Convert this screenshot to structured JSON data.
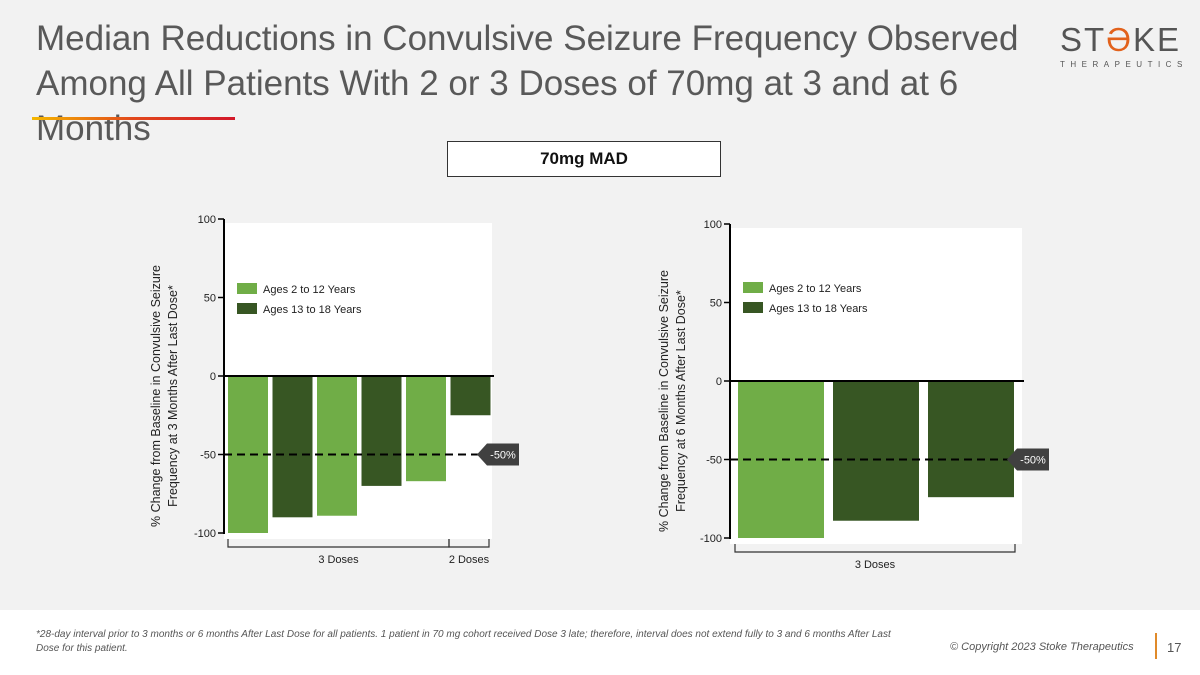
{
  "title": "Median Reductions in Convulsive Seizure Frequency Observed Among All Patients With 2 or 3 Doses of 70mg at 3 and at 6 Months",
  "logo": {
    "word": "STOKE",
    "sub": "THERAPEUTICS"
  },
  "section_label": "70mg MAD",
  "colors": {
    "ages_2_12": "#70ad47",
    "ages_13_18": "#375623",
    "reference_label_bg": "#404040"
  },
  "chart_data": [
    {
      "type": "bar",
      "ylabel": "% Change from Baseline in Convulsive Seizure Frequency at 3 Months After Last Dose*",
      "ylim": [
        -100,
        100
      ],
      "yticks": [
        "100",
        "50",
        "0",
        "-50",
        "-100"
      ],
      "legend": [
        "Ages 2 to 12 Years",
        "Ages 13 to 18 Years"
      ],
      "legend_position": "upper-left",
      "bars": [
        {
          "series": "Ages 2 to 12 Years",
          "value": -100,
          "group": "3 Doses"
        },
        {
          "series": "Ages 13 to 18 Years",
          "value": -90,
          "group": "3 Doses"
        },
        {
          "series": "Ages 2 to 12 Years",
          "value": -89,
          "group": "3 Doses"
        },
        {
          "series": "Ages 13 to 18 Years",
          "value": -70,
          "group": "3 Doses"
        },
        {
          "series": "Ages 2 to 12 Years",
          "value": -67,
          "group": "3 Doses"
        },
        {
          "series": "Ages 13 to 18 Years",
          "value": -25,
          "group": "2 Doses"
        }
      ],
      "groups": [
        "3 Doses",
        "2 Doses"
      ],
      "reference_line": {
        "value": -50,
        "label": "-50%"
      }
    },
    {
      "type": "bar",
      "ylabel": "% Change from Baseline in Convulsive Seizure Frequency at 6 Months After Last Dose*",
      "ylim": [
        -100,
        100
      ],
      "yticks": [
        "100",
        "50",
        "0",
        "-50",
        "-100"
      ],
      "legend": [
        "Ages 2 to 12 Years",
        "Ages 13 to 18 Years"
      ],
      "legend_position": "upper-left",
      "bars": [
        {
          "series": "Ages 2 to 12 Years",
          "value": -100,
          "group": "3 Doses"
        },
        {
          "series": "Ages 13 to 18 Years",
          "value": -89,
          "group": "3 Doses"
        },
        {
          "series": "Ages 13 to 18 Years",
          "value": -74,
          "group": "3 Doses"
        }
      ],
      "groups": [
        "3 Doses"
      ],
      "reference_line": {
        "value": -50,
        "label": "-50%"
      }
    }
  ],
  "footnote": "*28-day interval prior to 3 months or 6 months After Last Dose for all patients. 1 patient in 70 mg cohort received Dose 3 late; therefore, interval does not extend fully to 3 and 6 months After Last Dose for this patient.",
  "copyright": "© Copyright 2023 Stoke Therapeutics",
  "page_number": "17"
}
